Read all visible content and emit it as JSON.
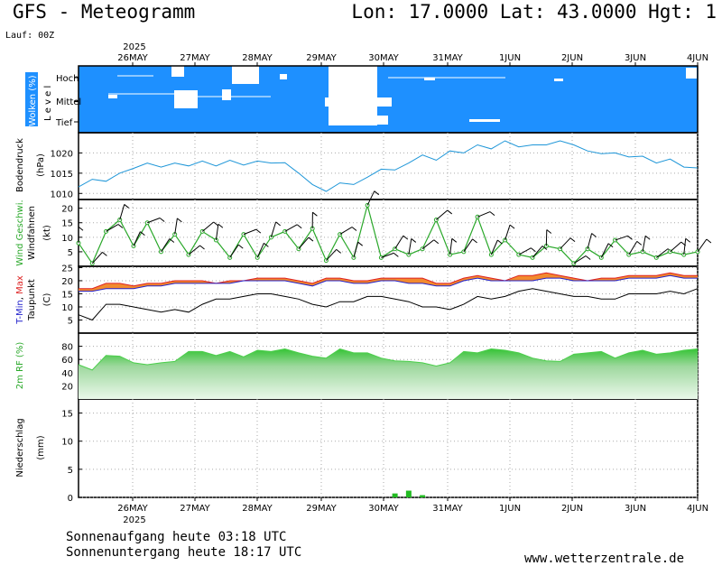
{
  "header": {
    "title": "GFS - Meteogramm",
    "coords": "Lon: 17.0000 Lat: 43.0000 Hgt: 1",
    "run": "Lauf: 00Z"
  },
  "dates": [
    "26MAY",
    "27MAY",
    "28MAY",
    "29MAY",
    "30MAY",
    "31MAY",
    "1JUN",
    "2JUN",
    "3JUN",
    "4JUN"
  ],
  "year": "2025",
  "footer": {
    "sunrise": "Sonnenaufgang heute 03:18 UTC",
    "sunset": "Sonnenuntergang heute 18:17 UTC",
    "site": "www.wetterzentrale.de"
  },
  "colors": {
    "cloud": "#1e90ff",
    "pressure": "#1e96d8",
    "wind": "#2aa82a",
    "tmin": "#2222cc",
    "tmax": "#dd2222",
    "temp_fill": "#f28a2e",
    "rh": "#4cce4c",
    "precip": "#22bb22"
  },
  "chart_data": [
    {
      "type": "heatmap",
      "title": "Wolken (%)",
      "ylabel": "L e v e l",
      "levels": [
        "Hoch",
        "Mittel",
        "Tief"
      ]
    },
    {
      "type": "line",
      "ylabel": "Bodendruck (hPa)",
      "yticks": [
        "1010",
        "1015",
        "1020"
      ],
      "ylim": [
        1008.5,
        1025
      ],
      "series": [
        {
          "values": [
            1011.6,
            1013.5,
            1013.0,
            1015.0,
            1016.2,
            1017.5,
            1016.5,
            1017.5,
            1016.8,
            1018.0,
            1016.8,
            1018.2,
            1017.0,
            1018.0,
            1017.5,
            1017.6,
            1015.0,
            1012.2,
            1010.5,
            1012.6,
            1012.2,
            1014.0,
            1016.0,
            1015.8,
            1017.5,
            1019.5,
            1018.2,
            1020.5,
            1020.0,
            1022.0,
            1021.0,
            1023.0,
            1021.5,
            1022.0,
            1022.0,
            1023.0,
            1022.0,
            1020.5,
            1019.8,
            1020.0,
            1019.0,
            1019.2,
            1017.5,
            1018.5,
            1016.5,
            1016.3
          ]
        }
      ]
    },
    {
      "type": "line",
      "ylabel": "Wind Geschwi. Windfahnen (kt)",
      "yticks": [
        "5",
        "10",
        "15",
        "20"
      ],
      "ylim": [
        0,
        23
      ],
      "series": [
        {
          "name": "Wind Geschwi.",
          "values": [
            8,
            1,
            12,
            16,
            7,
            15,
            5,
            11,
            4,
            12,
            9,
            3,
            11,
            3,
            10,
            12,
            6,
            13,
            2,
            11,
            3,
            21,
            3,
            6,
            4,
            6,
            16,
            4,
            5,
            17,
            4,
            9,
            4,
            3,
            7,
            6,
            1,
            6,
            3,
            9,
            4,
            5,
            3,
            5,
            4,
            5
          ]
        }
      ]
    },
    {
      "type": "line",
      "ylabel": "T-Min, Max Taupunkt (C)",
      "yticks": [
        "5",
        "10",
        "15",
        "20",
        "25"
      ],
      "ylim": [
        0,
        25.5
      ],
      "series": [
        {
          "name": "T-Min",
          "values": [
            16,
            16,
            17,
            17,
            17,
            18,
            18,
            19,
            19,
            19,
            19,
            19,
            20,
            20,
            20,
            20,
            19,
            18,
            20,
            20,
            19,
            19,
            20,
            20,
            19,
            19,
            18,
            18,
            20,
            21,
            20,
            20,
            20,
            20,
            21,
            21,
            20,
            20,
            20,
            20,
            21,
            21,
            21,
            22,
            21,
            21
          ]
        },
        {
          "name": "Max",
          "values": [
            17,
            17,
            19,
            19,
            18,
            19,
            19,
            20,
            20,
            20,
            19,
            20,
            20,
            21,
            21,
            21,
            20,
            19,
            21,
            21,
            20,
            20,
            21,
            21,
            21,
            21,
            19,
            19,
            21,
            22,
            21,
            20,
            22,
            22,
            23,
            22,
            21,
            20,
            21,
            21,
            22,
            22,
            22,
            23,
            22,
            22
          ]
        },
        {
          "name": "Taupunkt",
          "values": [
            7,
            5,
            11,
            11,
            10,
            9,
            8,
            9,
            8,
            11,
            13,
            13,
            14,
            15,
            15,
            14,
            13,
            11,
            10,
            12,
            12,
            14,
            14,
            13,
            12,
            10,
            10,
            9,
            11,
            14,
            13,
            14,
            16,
            17,
            16,
            15,
            14,
            14,
            13,
            13,
            15,
            15,
            15,
            16,
            15,
            17
          ]
        }
      ]
    },
    {
      "type": "area",
      "ylabel": "2m RF (%)",
      "yticks": [
        "20",
        "40",
        "60",
        "80"
      ],
      "ylim": [
        0,
        100
      ],
      "series": [
        {
          "values": [
            52,
            44,
            66,
            65,
            55,
            52,
            55,
            57,
            72,
            72,
            66,
            72,
            64,
            74,
            72,
            76,
            70,
            65,
            62,
            76,
            70,
            70,
            62,
            58,
            57,
            55,
            50,
            55,
            72,
            70,
            76,
            74,
            70,
            62,
            58,
            57,
            68,
            70,
            72,
            62,
            70,
            74,
            68,
            70,
            74,
            76
          ]
        }
      ]
    },
    {
      "type": "bar",
      "ylabel": "Niederschlag (mm)",
      "yticks": [
        "0",
        "5",
        "10",
        "15"
      ],
      "ylim": [
        0,
        17.5
      ],
      "series": [
        {
          "values": [
            0,
            0,
            0,
            0,
            0,
            0,
            0,
            0,
            0,
            0,
            0,
            0,
            0,
            0,
            0,
            0,
            0,
            0,
            0,
            0,
            0,
            0,
            0,
            0.7,
            1.2,
            0.4,
            0,
            0,
            0,
            0,
            0,
            0,
            0,
            0,
            0,
            0,
            0,
            0,
            0,
            0,
            0,
            0,
            0,
            0,
            0,
            0
          ]
        }
      ]
    }
  ]
}
